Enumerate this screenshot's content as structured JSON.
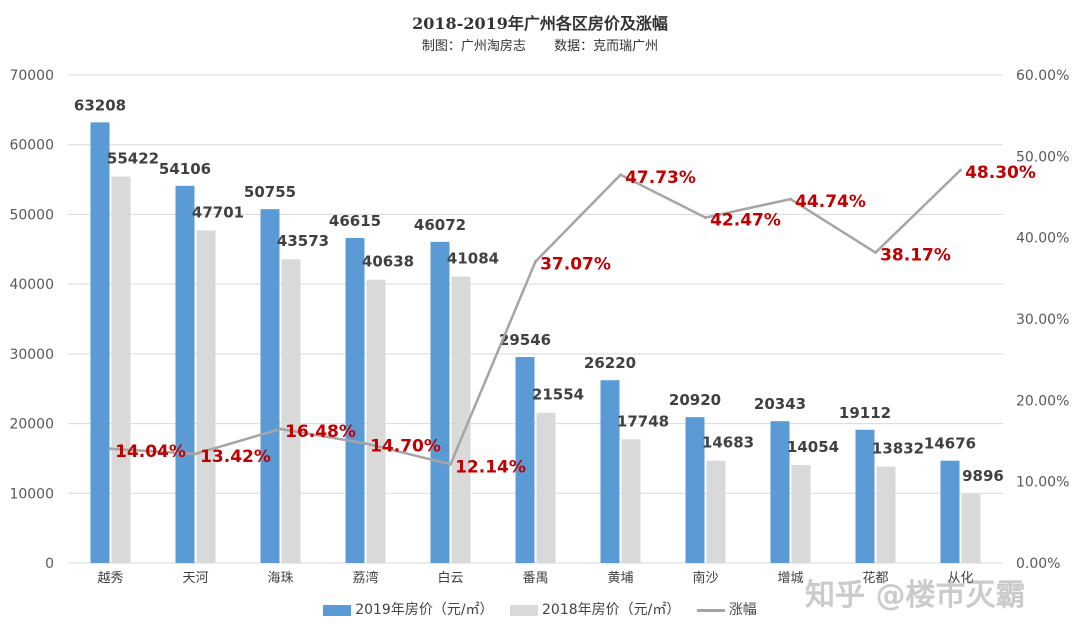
{
  "chart_data": {
    "type": "bar",
    "title": "2018-2019年广州各区房价及涨幅",
    "subtitle_left": "制图：广州淘房志",
    "subtitle_right": "数据：克而瑞广州",
    "categories": [
      "越秀",
      "天河",
      "海珠",
      "荔湾",
      "白云",
      "番禺",
      "黄埔",
      "南沙",
      "增城",
      "花都",
      "从化"
    ],
    "series": [
      {
        "name": "2019年房价（元/㎡）",
        "type": "bar",
        "color": "#5b9bd5",
        "values": [
          63208,
          54106,
          50755,
          46615,
          46072,
          29546,
          26220,
          20920,
          20343,
          19112,
          14676
        ]
      },
      {
        "name": "2018年房价（元/㎡）",
        "type": "bar",
        "color": "#d9d9d9",
        "values": [
          55422,
          47701,
          43573,
          40638,
          41084,
          21554,
          17748,
          14683,
          14054,
          13832,
          9896
        ]
      },
      {
        "name": "涨幅",
        "type": "line",
        "color": "#a5a5a5",
        "axis": "right",
        "values": [
          14.04,
          13.42,
          16.48,
          14.7,
          12.14,
          37.07,
          47.73,
          42.47,
          44.74,
          38.17,
          48.3
        ],
        "labels": [
          "14.04%",
          "13.42%",
          "16.48%",
          "14.70%",
          "12.14%",
          "37.07%",
          "47.73%",
          "42.47%",
          "44.74%",
          "38.17%",
          "48.30%"
        ]
      }
    ],
    "ylim_left": [
      0,
      70000
    ],
    "yticks_left": [
      "0",
      "10000",
      "20000",
      "30000",
      "40000",
      "50000",
      "60000",
      "70000"
    ],
    "ylim_right": [
      0,
      60
    ],
    "yticks_right": [
      "0.00%",
      "10.00%",
      "20.00%",
      "30.00%",
      "40.00%",
      "50.00%",
      "60.00%"
    ],
    "grid": true,
    "legend_position": "bottom",
    "pct_label_color": "#c00000"
  },
  "watermark": "知乎 @楼市灭霸"
}
